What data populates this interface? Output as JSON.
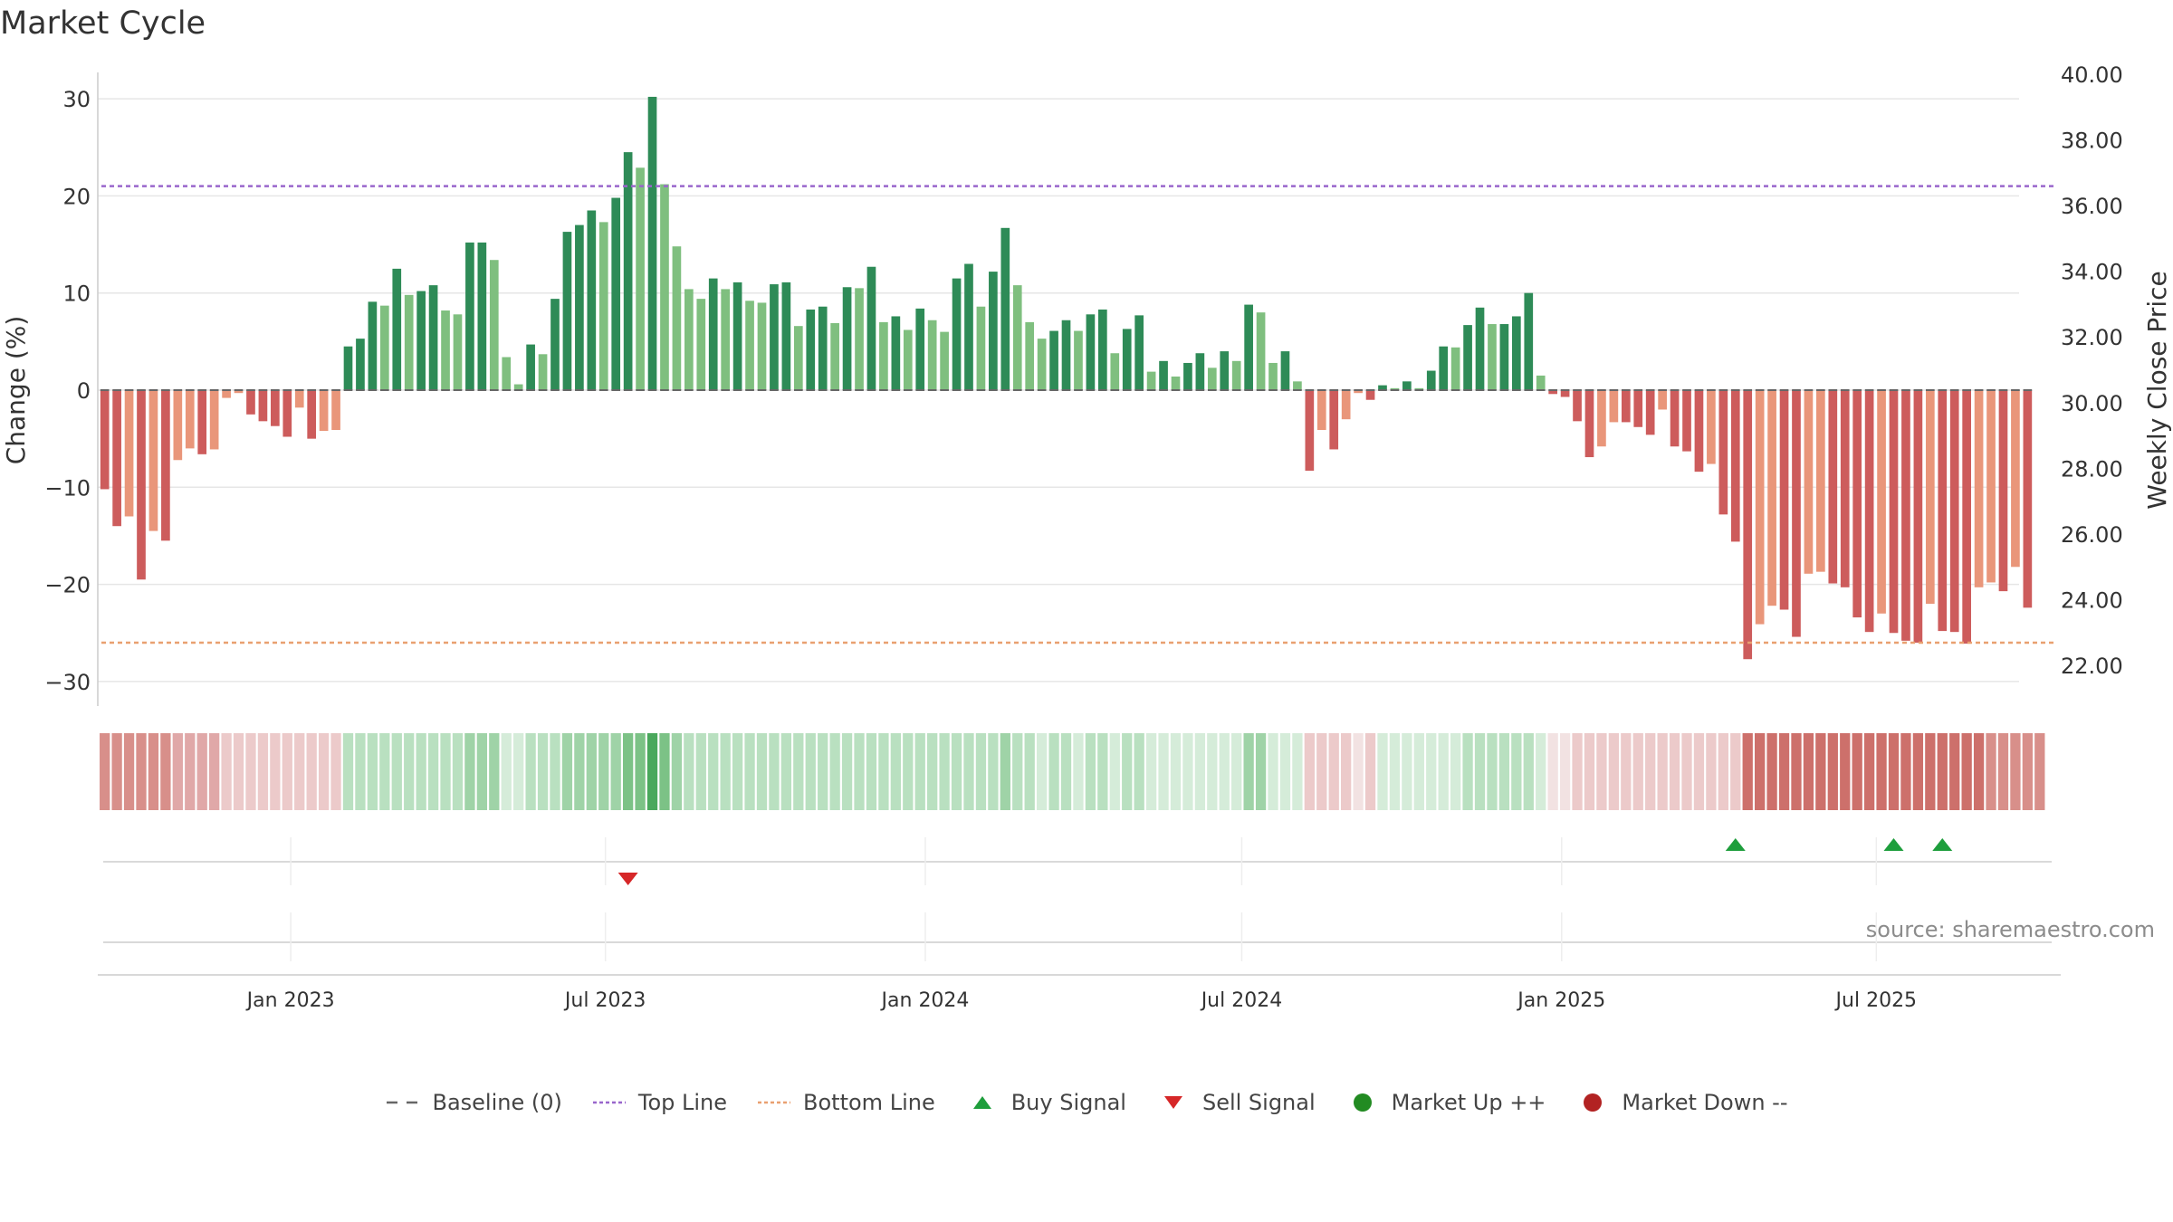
{
  "chart_data": {
    "type": "bar",
    "title": "Market Cycle",
    "ylabel": "Change (%)",
    "y2label": "Weekly Close Price",
    "ylim": [
      -32,
      33
    ],
    "y2lim": [
      21.1,
      40.4
    ],
    "yticks": [
      -30,
      -20,
      -10,
      0,
      10,
      20,
      30
    ],
    "y2ticks": [
      "22.00",
      "24.00",
      "26.00",
      "28.00",
      "30.00",
      "32.00",
      "34.00",
      "36.00",
      "38.00",
      "40.00"
    ],
    "x_start": "2022-09-12",
    "x_end": "2025-10-13",
    "bar_interval_days": 7,
    "xticks": [
      {
        "date": "2023-01-01",
        "label": "Jan 2023"
      },
      {
        "date": "2023-07-01",
        "label": "Jul 2023"
      },
      {
        "date": "2024-01-01",
        "label": "Jan 2024"
      },
      {
        "date": "2024-07-01",
        "label": "Jul 2024"
      },
      {
        "date": "2025-01-01",
        "label": "Jan 2025"
      },
      {
        "date": "2025-07-01",
        "label": "Jul 2025"
      }
    ],
    "top_line": 21,
    "bottom_line": -26,
    "grid": true,
    "legend_position": "bottom",
    "source": "source: sharemaestro.com",
    "colors": {
      "strong_up": "#2e8b57",
      "weak_up": "#7fbf7f",
      "strong_down": "#cd5c5c",
      "weak_down": "#e9967a",
      "top_line": "#9966cc",
      "bottom_line": "#e9a070",
      "buy": "#1e9e3c",
      "sell": "#d62728",
      "market_up": "#228b22",
      "market_down": "#b22222",
      "baseline": "#666666"
    },
    "first_bar_date": "2022-09-16",
    "values": [
      -10.2,
      -14,
      -13,
      -19.5,
      -14.5,
      -15.5,
      -7.2,
      -6,
      -6.6,
      -6.1,
      -0.8,
      -0.3,
      -2.5,
      -3.2,
      -3.7,
      -4.8,
      -1.8,
      -5,
      -4.2,
      -4.1,
      4.5,
      5.3,
      9.1,
      8.7,
      12.5,
      9.8,
      10.2,
      10.8,
      8.2,
      7.8,
      15.2,
      15.2,
      13.4,
      3.4,
      0.6,
      4.7,
      3.7,
      9.4,
      16.3,
      17,
      18.5,
      17.3,
      19.8,
      24.5,
      22.9,
      30.2,
      21.2,
      14.8,
      10.4,
      9.4,
      11.5,
      10.4,
      11.1,
      9.2,
      9,
      10.9,
      11.1,
      6.6,
      8.3,
      8.6,
      6.9,
      10.6,
      10.5,
      12.7,
      7,
      7.6,
      6.2,
      8.4,
      7.2,
      6,
      11.5,
      13,
      8.6,
      12.2,
      16.7,
      10.8,
      7,
      5.3,
      6.1,
      7.2,
      6.1,
      7.8,
      8.3,
      3.8,
      6.3,
      7.7,
      1.9,
      3,
      1.4,
      2.8,
      3.8,
      2.3,
      4,
      3,
      8.8,
      8,
      2.8,
      4,
      0.9,
      -8.3,
      -4.1,
      -6.1,
      -3,
      -0.3,
      -1,
      0.5,
      0.2,
      0.9,
      0.2,
      2,
      4.5,
      4.4,
      6.7,
      8.5,
      6.8,
      6.8,
      7.6,
      10,
      1.5,
      -0.4,
      -0.7,
      -3.2,
      -6.9,
      -5.8,
      -3.3,
      -3.3,
      -3.8,
      -4.6,
      -2,
      -5.8,
      -6.3,
      -8.4,
      -7.6,
      -12.8,
      -15.6,
      -27.7,
      -24.1,
      -22.2,
      -22.6,
      -25.4,
      -18.9,
      -18.7,
      -19.9,
      -20.3,
      -23.4,
      -24.9,
      -23,
      -25,
      -25.8,
      -26,
      -22,
      -24.8,
      -24.9,
      -26.1,
      -20.3,
      -19.8,
      -20.7,
      -18.2,
      -22.4
    ],
    "strength_strip_values": [
      -3,
      -3,
      -3,
      -3,
      -3,
      -3,
      -2,
      -2,
      -2,
      -2,
      -1,
      -1,
      -1,
      -1,
      -1,
      -1,
      -1,
      -1,
      -1,
      -1,
      2,
      2,
      2,
      2,
      2,
      2,
      2,
      2,
      2,
      2,
      3,
      3,
      3,
      1,
      1,
      2,
      2,
      2,
      3,
      3,
      3,
      3,
      3,
      4,
      4,
      5,
      4,
      3,
      2,
      2,
      2,
      2,
      2,
      2,
      2,
      2,
      2,
      2,
      2,
      2,
      2,
      2,
      2,
      2,
      2,
      2,
      2,
      2,
      2,
      2,
      2,
      2,
      2,
      2,
      3,
      2,
      2,
      1,
      2,
      2,
      1,
      2,
      2,
      1,
      2,
      2,
      1,
      1,
      1,
      1,
      1,
      1,
      1,
      1,
      3,
      3,
      1,
      1,
      1,
      -1,
      -1,
      -1,
      -1,
      0,
      -1,
      1,
      1,
      1,
      1,
      1,
      1,
      1,
      2,
      2,
      2,
      2,
      2,
      2,
      1,
      0,
      0,
      -1,
      -1,
      -1,
      -1,
      -1,
      -1,
      -1,
      -1,
      -1,
      -1,
      -1,
      -1,
      -1,
      -1,
      -4,
      -4,
      -4,
      -4,
      -4,
      -4,
      -4,
      -4,
      -4,
      -4,
      -4,
      -4,
      -4,
      -4,
      -4,
      -4,
      -4,
      -4,
      -4,
      -4,
      -3,
      -3,
      -3,
      -3,
      -3
    ],
    "buy_signals": [
      "2025-04-11",
      "2025-07-11",
      "2025-08-08"
    ],
    "sell_signals": [
      "2023-07-14"
    ]
  },
  "legend": {
    "items": [
      {
        "label": "Baseline (0)",
        "type": "dash",
        "color": "#666666"
      },
      {
        "label": "Top Line",
        "type": "dotted",
        "color": "#9966cc"
      },
      {
        "label": "Bottom Line",
        "type": "dotted",
        "color": "#e9a070"
      },
      {
        "label": "Buy Signal",
        "type": "triangle-up",
        "color": "#1e9e3c"
      },
      {
        "label": "Sell Signal",
        "type": "triangle-down",
        "color": "#d62728"
      },
      {
        "label": "Market Up ++",
        "type": "circle",
        "color": "#228b22"
      },
      {
        "label": "Market Down --",
        "type": "circle",
        "color": "#b22222"
      }
    ]
  }
}
